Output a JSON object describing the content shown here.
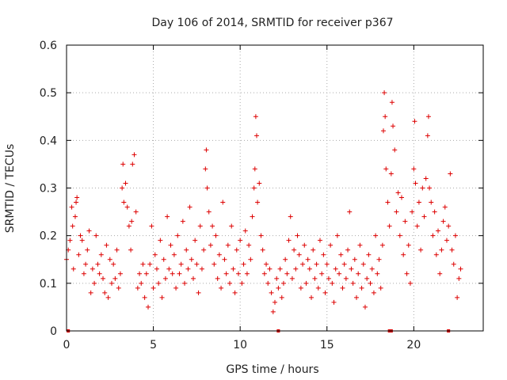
{
  "chart_data": {
    "type": "scatter",
    "title": "Day 106 of 2014, SRMTID for receiver p367",
    "xlabel": "GPS time / hours",
    "ylabel": "SRMTID / TECUs",
    "xlim": [
      0,
      24
    ],
    "ylim": [
      0,
      0.6
    ],
    "x_ticks": [
      0,
      5,
      10,
      15,
      20
    ],
    "y_ticks": [
      0,
      0.1,
      0.2,
      0.3,
      0.4,
      0.5,
      0.6
    ],
    "x_tick_labels": [
      "0",
      "5",
      "10",
      "15",
      "20"
    ],
    "y_tick_labels": [
      "0",
      "0.1",
      "0.2",
      "0.3",
      "0.4",
      "0.5",
      "0.6"
    ],
    "grid": true,
    "marker": "+",
    "marker_color": "#dd0000",
    "series": [
      {
        "name": "SRMTID p367",
        "points": [
          [
            0.0,
            0.15
          ],
          [
            0.1,
            0.17
          ],
          [
            0.2,
            0.19
          ],
          [
            0.3,
            0.26
          ],
          [
            0.35,
            0.22
          ],
          [
            0.4,
            0.13
          ],
          [
            0.5,
            0.24
          ],
          [
            0.55,
            0.27
          ],
          [
            0.6,
            0.28
          ],
          [
            0.7,
            0.16
          ],
          [
            0.8,
            0.2
          ],
          [
            0.9,
            0.19
          ],
          [
            1.0,
            0.12
          ],
          [
            1.1,
            0.14
          ],
          [
            1.2,
            0.17
          ],
          [
            1.3,
            0.21
          ],
          [
            1.4,
            0.08
          ],
          [
            1.5,
            0.13
          ],
          [
            1.6,
            0.1
          ],
          [
            1.7,
            0.2
          ],
          [
            1.8,
            0.14
          ],
          [
            1.9,
            0.12
          ],
          [
            2.0,
            0.16
          ],
          [
            2.1,
            0.11
          ],
          [
            2.2,
            0.08
          ],
          [
            2.3,
            0.18
          ],
          [
            2.4,
            0.07
          ],
          [
            2.5,
            0.15
          ],
          [
            2.6,
            0.1
          ],
          [
            2.7,
            0.14
          ],
          [
            2.8,
            0.11
          ],
          [
            2.9,
            0.17
          ],
          [
            3.0,
            0.09
          ],
          [
            3.1,
            0.12
          ],
          [
            3.2,
            0.3
          ],
          [
            3.25,
            0.35
          ],
          [
            3.3,
            0.27
          ],
          [
            3.4,
            0.31
          ],
          [
            3.5,
            0.26
          ],
          [
            3.6,
            0.22
          ],
          [
            3.7,
            0.17
          ],
          [
            3.75,
            0.23
          ],
          [
            3.8,
            0.35
          ],
          [
            3.9,
            0.37
          ],
          [
            4.0,
            0.25
          ],
          [
            4.1,
            0.09
          ],
          [
            4.2,
            0.12
          ],
          [
            4.3,
            0.1
          ],
          [
            4.4,
            0.14
          ],
          [
            4.5,
            0.07
          ],
          [
            4.6,
            0.12
          ],
          [
            4.7,
            0.05
          ],
          [
            4.8,
            0.14
          ],
          [
            4.9,
            0.22
          ],
          [
            5.0,
            0.09
          ],
          [
            5.1,
            0.16
          ],
          [
            5.2,
            0.13
          ],
          [
            5.3,
            0.1
          ],
          [
            5.4,
            0.19
          ],
          [
            5.5,
            0.07
          ],
          [
            5.6,
            0.15
          ],
          [
            5.7,
            0.11
          ],
          [
            5.8,
            0.24
          ],
          [
            5.9,
            0.13
          ],
          [
            6.0,
            0.18
          ],
          [
            6.1,
            0.12
          ],
          [
            6.2,
            0.16
          ],
          [
            6.3,
            0.09
          ],
          [
            6.4,
            0.2
          ],
          [
            6.5,
            0.12
          ],
          [
            6.6,
            0.14
          ],
          [
            6.7,
            0.23
          ],
          [
            6.8,
            0.1
          ],
          [
            6.9,
            0.17
          ],
          [
            7.0,
            0.13
          ],
          [
            7.1,
            0.26
          ],
          [
            7.2,
            0.15
          ],
          [
            7.3,
            0.11
          ],
          [
            7.4,
            0.19
          ],
          [
            7.5,
            0.14
          ],
          [
            7.6,
            0.08
          ],
          [
            7.7,
            0.22
          ],
          [
            7.8,
            0.13
          ],
          [
            7.9,
            0.17
          ],
          [
            8.0,
            0.34
          ],
          [
            8.05,
            0.38
          ],
          [
            8.1,
            0.3
          ],
          [
            8.2,
            0.25
          ],
          [
            8.3,
            0.18
          ],
          [
            8.4,
            0.22
          ],
          [
            8.5,
            0.14
          ],
          [
            8.6,
            0.2
          ],
          [
            8.7,
            0.11
          ],
          [
            8.8,
            0.16
          ],
          [
            8.9,
            0.09
          ],
          [
            9.0,
            0.27
          ],
          [
            9.1,
            0.15
          ],
          [
            9.2,
            0.12
          ],
          [
            9.3,
            0.18
          ],
          [
            9.4,
            0.1
          ],
          [
            9.5,
            0.22
          ],
          [
            9.6,
            0.13
          ],
          [
            9.7,
            0.08
          ],
          [
            9.8,
            0.17
          ],
          [
            9.9,
            0.12
          ],
          [
            10.0,
            0.19
          ],
          [
            10.1,
            0.1
          ],
          [
            10.2,
            0.14
          ],
          [
            10.3,
            0.21
          ],
          [
            10.4,
            0.12
          ],
          [
            10.5,
            0.18
          ],
          [
            10.6,
            0.15
          ],
          [
            10.7,
            0.24
          ],
          [
            10.8,
            0.3
          ],
          [
            10.85,
            0.34
          ],
          [
            10.9,
            0.45
          ],
          [
            10.95,
            0.41
          ],
          [
            11.0,
            0.27
          ],
          [
            11.1,
            0.31
          ],
          [
            11.2,
            0.2
          ],
          [
            11.3,
            0.17
          ],
          [
            11.4,
            0.12
          ],
          [
            11.5,
            0.14
          ],
          [
            11.6,
            0.1
          ],
          [
            11.7,
            0.13
          ],
          [
            11.8,
            0.08
          ],
          [
            11.9,
            0.04
          ],
          [
            12.0,
            0.06
          ],
          [
            12.1,
            0.11
          ],
          [
            12.2,
            0.09
          ],
          [
            12.3,
            0.13
          ],
          [
            12.4,
            0.07
          ],
          [
            12.5,
            0.1
          ],
          [
            12.6,
            0.15
          ],
          [
            12.7,
            0.12
          ],
          [
            12.8,
            0.19
          ],
          [
            12.9,
            0.24
          ],
          [
            13.0,
            0.11
          ],
          [
            13.1,
            0.17
          ],
          [
            13.2,
            0.13
          ],
          [
            13.3,
            0.2
          ],
          [
            13.4,
            0.16
          ],
          [
            13.5,
            0.09
          ],
          [
            13.6,
            0.14
          ],
          [
            13.7,
            0.18
          ],
          [
            13.8,
            0.1
          ],
          [
            13.9,
            0.15
          ],
          [
            14.0,
            0.13
          ],
          [
            14.1,
            0.07
          ],
          [
            14.2,
            0.17
          ],
          [
            14.3,
            0.11
          ],
          [
            14.4,
            0.14
          ],
          [
            14.5,
            0.09
          ],
          [
            14.6,
            0.19
          ],
          [
            14.7,
            0.12
          ],
          [
            14.8,
            0.16
          ],
          [
            14.9,
            0.08
          ],
          [
            15.0,
            0.14
          ],
          [
            15.1,
            0.11
          ],
          [
            15.2,
            0.18
          ],
          [
            15.3,
            0.1
          ],
          [
            15.4,
            0.06
          ],
          [
            15.5,
            0.13
          ],
          [
            15.6,
            0.2
          ],
          [
            15.7,
            0.12
          ],
          [
            15.8,
            0.16
          ],
          [
            15.9,
            0.09
          ],
          [
            16.0,
            0.14
          ],
          [
            16.1,
            0.11
          ],
          [
            16.2,
            0.17
          ],
          [
            16.3,
            0.25
          ],
          [
            16.4,
            0.13
          ],
          [
            16.5,
            0.1
          ],
          [
            16.6,
            0.15
          ],
          [
            16.7,
            0.07
          ],
          [
            16.8,
            0.12
          ],
          [
            16.9,
            0.18
          ],
          [
            17.0,
            0.09
          ],
          [
            17.1,
            0.14
          ],
          [
            17.2,
            0.05
          ],
          [
            17.3,
            0.11
          ],
          [
            17.4,
            0.16
          ],
          [
            17.5,
            0.1
          ],
          [
            17.6,
            0.13
          ],
          [
            17.7,
            0.08
          ],
          [
            17.8,
            0.2
          ],
          [
            17.9,
            0.12
          ],
          [
            18.0,
            0.15
          ],
          [
            18.1,
            0.09
          ],
          [
            18.2,
            0.18
          ],
          [
            18.25,
            0.42
          ],
          [
            18.3,
            0.5
          ],
          [
            18.35,
            0.45
          ],
          [
            18.4,
            0.34
          ],
          [
            18.5,
            0.27
          ],
          [
            18.6,
            0.22
          ],
          [
            18.7,
            0.33
          ],
          [
            18.75,
            0.48
          ],
          [
            18.8,
            0.43
          ],
          [
            18.9,
            0.38
          ],
          [
            19.0,
            0.25
          ],
          [
            19.1,
            0.29
          ],
          [
            19.2,
            0.2
          ],
          [
            19.3,
            0.28
          ],
          [
            19.4,
            0.16
          ],
          [
            19.5,
            0.23
          ],
          [
            19.6,
            0.12
          ],
          [
            19.7,
            0.18
          ],
          [
            19.8,
            0.1
          ],
          [
            19.9,
            0.25
          ],
          [
            20.0,
            0.34
          ],
          [
            20.05,
            0.44
          ],
          [
            20.1,
            0.31
          ],
          [
            20.2,
            0.22
          ],
          [
            20.3,
            0.27
          ],
          [
            20.4,
            0.17
          ],
          [
            20.5,
            0.3
          ],
          [
            20.6,
            0.24
          ],
          [
            20.7,
            0.32
          ],
          [
            20.8,
            0.41
          ],
          [
            20.85,
            0.45
          ],
          [
            20.9,
            0.3
          ],
          [
            21.0,
            0.27
          ],
          [
            21.1,
            0.2
          ],
          [
            21.2,
            0.25
          ],
          [
            21.3,
            0.16
          ],
          [
            21.4,
            0.21
          ],
          [
            21.5,
            0.12
          ],
          [
            21.6,
            0.17
          ],
          [
            21.7,
            0.23
          ],
          [
            21.8,
            0.26
          ],
          [
            21.9,
            0.19
          ],
          [
            22.0,
            0.22
          ],
          [
            22.1,
            0.33
          ],
          [
            22.2,
            0.17
          ],
          [
            22.3,
            0.14
          ],
          [
            22.4,
            0.2
          ],
          [
            22.5,
            0.07
          ],
          [
            22.6,
            0.11
          ],
          [
            22.7,
            0.13
          ]
        ]
      }
    ],
    "zero_markers_x": [
      0.1,
      12.2,
      18.6,
      18.7,
      22.0
    ]
  }
}
